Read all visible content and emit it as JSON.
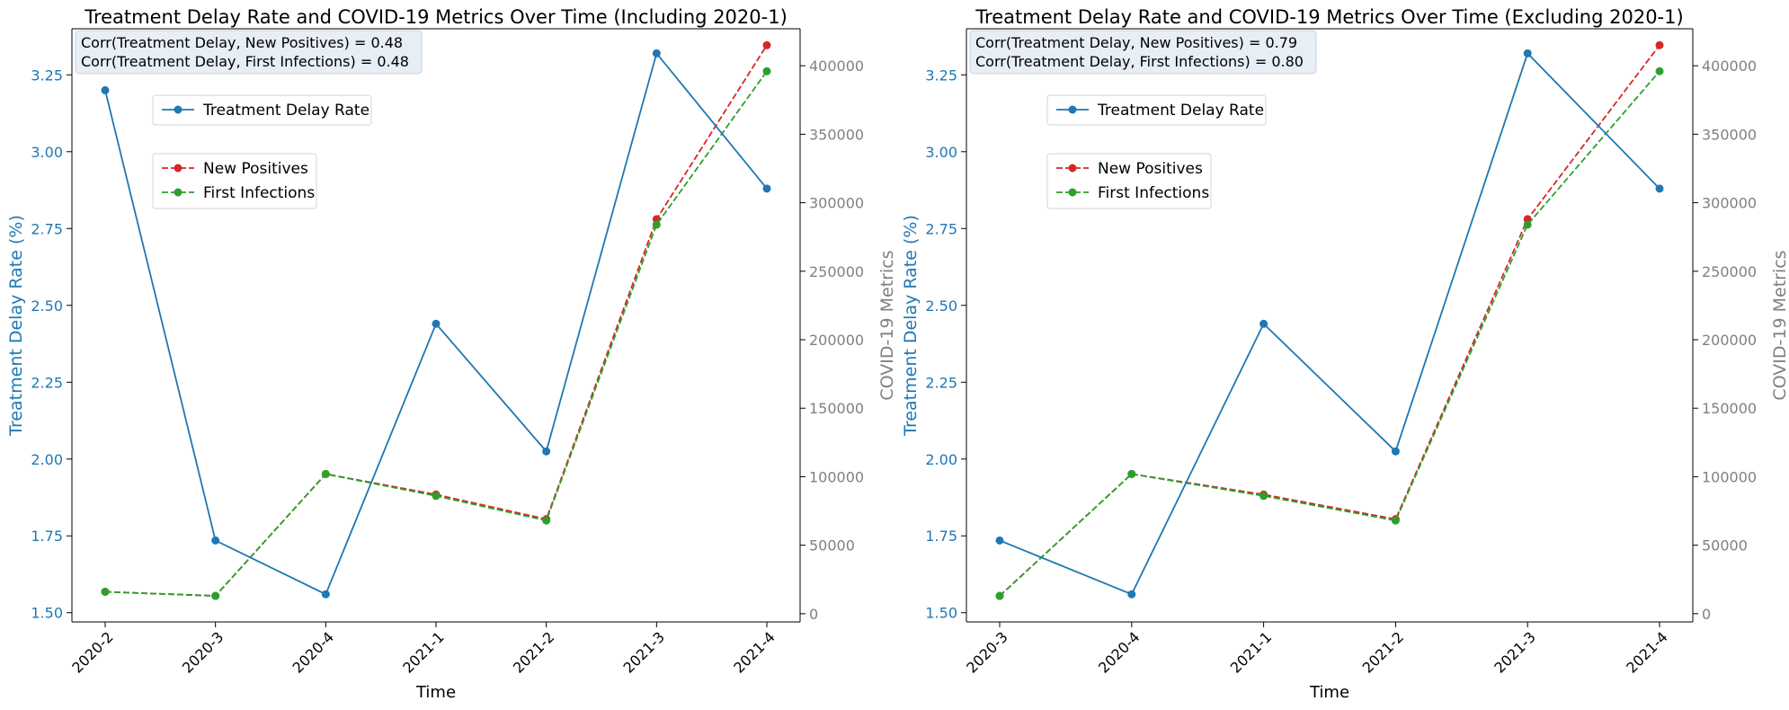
{
  "figure": {
    "colors": {
      "treatment": "#1f77b4",
      "new_positives": "#d62728",
      "first_infections": "#2ca02c",
      "right_axis": "#808080",
      "axis": "#000000",
      "annotation_bg": "#e8eef5"
    }
  },
  "chart_data": [
    {
      "type": "line",
      "title": "Treatment Delay Rate and COVID-19 Metrics Over Time (Including 2020-1)",
      "xlabel": "Time",
      "ylabel_left": "Treatment Delay Rate (%)",
      "ylabel_right": "COVID-19 Metrics",
      "categories": [
        "2020-2",
        "2020-3",
        "2020-4",
        "2021-1",
        "2021-2",
        "2021-3",
        "2021-4"
      ],
      "ylim_left": [
        1.47,
        3.4
      ],
      "yticks_left": [
        "1.50",
        "1.75",
        "2.00",
        "2.25",
        "2.50",
        "2.75",
        "3.00",
        "3.25"
      ],
      "ylim_right": [
        -6000,
        427000
      ],
      "yticks_right": [
        "0",
        "50000",
        "100000",
        "150000",
        "200000",
        "250000",
        "300000",
        "350000",
        "400000"
      ],
      "annotation": [
        "Corr(Treatment Delay, New Positives) = 0.48",
        "Corr(Treatment Delay, First Infections) = 0.48"
      ],
      "legend_left": [
        "Treatment Delay Rate"
      ],
      "legend_right": [
        "New Positives",
        "First Infections"
      ],
      "grid": false,
      "series": [
        {
          "name": "Treatment Delay Rate",
          "axis": "left",
          "style": "solid",
          "values": [
            3.2,
            1.735,
            1.56,
            2.44,
            2.025,
            3.32,
            2.88
          ]
        },
        {
          "name": "New Positives",
          "axis": "right",
          "style": "dashed",
          "values": [
            16000,
            13000,
            102000,
            87000,
            69000,
            288000,
            415000
          ]
        },
        {
          "name": "First Infections",
          "axis": "right",
          "style": "dashed",
          "values": [
            16000,
            13000,
            102000,
            86000,
            68000,
            284000,
            396000
          ]
        }
      ]
    },
    {
      "type": "line",
      "title": "Treatment Delay Rate and COVID-19 Metrics Over Time (Excluding 2020-1)",
      "xlabel": "Time",
      "ylabel_left": "Treatment Delay Rate (%)",
      "ylabel_right": "COVID-19 Metrics",
      "categories": [
        "2020-3",
        "2020-4",
        "2021-1",
        "2021-2",
        "2021-3",
        "2021-4"
      ],
      "ylim_left": [
        1.47,
        3.4
      ],
      "yticks_left": [
        "1.50",
        "1.75",
        "2.00",
        "2.25",
        "2.50",
        "2.75",
        "3.00",
        "3.25"
      ],
      "ylim_right": [
        -6000,
        427000
      ],
      "yticks_right": [
        "0",
        "50000",
        "100000",
        "150000",
        "200000",
        "250000",
        "300000",
        "350000",
        "400000"
      ],
      "annotation": [
        "Corr(Treatment Delay, New Positives) = 0.79",
        "Corr(Treatment Delay, First Infections) = 0.80"
      ],
      "legend_left": [
        "Treatment Delay Rate"
      ],
      "legend_right": [
        "New Positives",
        "First Infections"
      ],
      "grid": false,
      "series": [
        {
          "name": "Treatment Delay Rate",
          "axis": "left",
          "style": "solid",
          "values": [
            1.735,
            1.56,
            2.44,
            2.025,
            3.32,
            2.88
          ]
        },
        {
          "name": "New Positives",
          "axis": "right",
          "style": "dashed",
          "values": [
            13000,
            102000,
            87000,
            69000,
            288000,
            415000
          ]
        },
        {
          "name": "First Infections",
          "axis": "right",
          "style": "dashed",
          "values": [
            13000,
            102000,
            86000,
            68000,
            284000,
            396000
          ]
        }
      ]
    }
  ]
}
